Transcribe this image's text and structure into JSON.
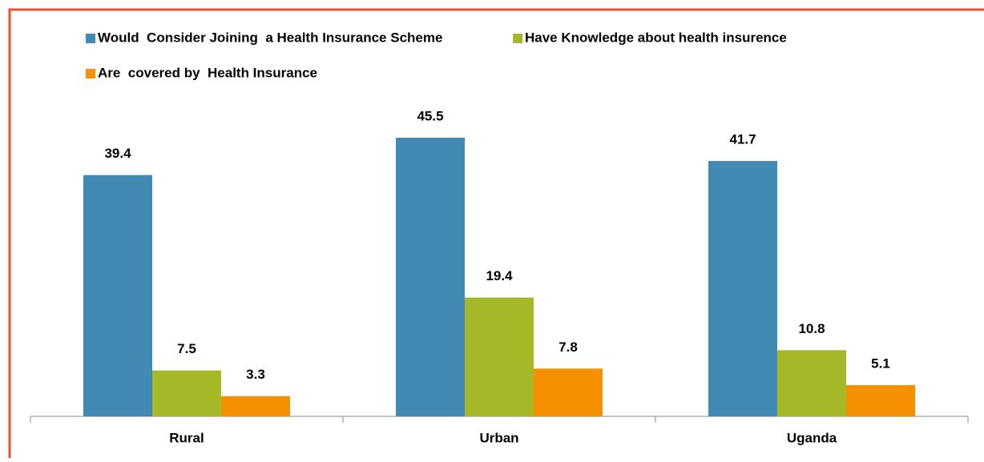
{
  "chart_data": {
    "type": "bar",
    "categories": [
      "Rural",
      "Urban",
      "Uganda"
    ],
    "series": [
      {
        "name": "Would  Consider Joining  a Health Insurance Scheme",
        "color": "#418ab3",
        "values": [
          39.4,
          45.5,
          41.7
        ]
      },
      {
        "name": "Have Knowledge about health insurence",
        "color": "#a6b727",
        "values": [
          7.5,
          19.4,
          10.8
        ]
      },
      {
        "name": "Are  covered by  Health Insurance",
        "color": "#f59100",
        "values": [
          3.3,
          7.8,
          5.1
        ]
      }
    ]
  }
}
